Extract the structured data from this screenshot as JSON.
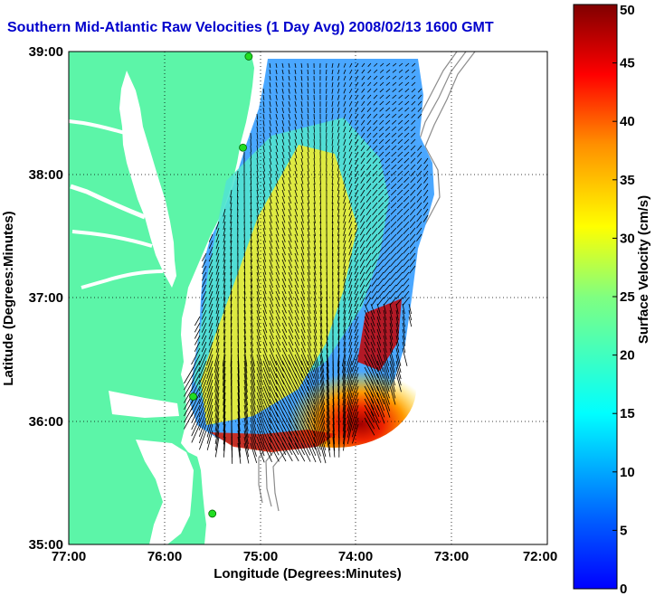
{
  "title": "Southern Mid-Atlantic Raw Velocities (1 Day Avg) 2008/02/13 1600 GMT",
  "map": {
    "x_axis": {
      "label": "Longitude (Degrees:Minutes)",
      "ticks": [
        "77:00",
        "76:00",
        "75:00",
        "74:00",
        "73:00",
        "72:00"
      ],
      "range_deg": [
        -77,
        -72
      ]
    },
    "y_axis": {
      "label": "Latitude (Degrees:Minutes)",
      "ticks": [
        "39:00",
        "38:00",
        "37:00",
        "36:00",
        "35:00"
      ],
      "range_deg": [
        35,
        39
      ]
    },
    "grid": "dotted",
    "land_color": "#5cf5a8",
    "water_color": "#ffffff",
    "vector_color": "#000000",
    "site_marker_color": "#22dd22",
    "radar_sites": [
      {
        "lon": -75.12,
        "lat": 38.96
      },
      {
        "lon": -75.18,
        "lat": 38.22
      },
      {
        "lon": -75.7,
        "lat": 36.2
      },
      {
        "lon": -75.5,
        "lat": 35.25
      }
    ]
  },
  "colorbar": {
    "label": "Surface Velocity (cm/s)",
    "min": 0,
    "max": 50,
    "ticks": [
      "0",
      "5",
      "10",
      "15",
      "20",
      "25",
      "30",
      "35",
      "40",
      "45",
      "50"
    ],
    "colormap": "jet"
  }
}
